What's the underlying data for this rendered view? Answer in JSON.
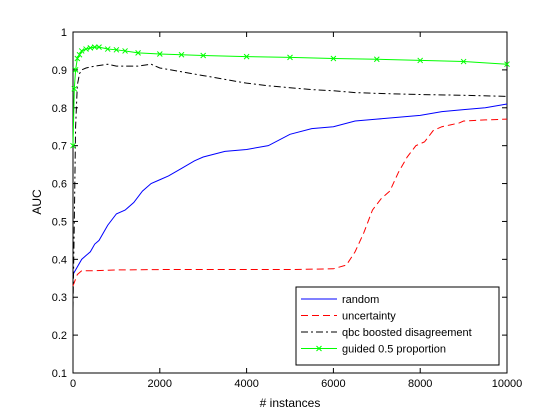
{
  "chart_data": {
    "type": "line",
    "title": "",
    "xlabel": "# instances",
    "ylabel": "AUC",
    "xlim": [
      0,
      10000
    ],
    "ylim": [
      0.1,
      1
    ],
    "xticks": [
      "0",
      "2000",
      "4000",
      "6000",
      "8000",
      "10000"
    ],
    "yticks": [
      "0.1",
      "0.2",
      "0.3",
      "0.4",
      "0.5",
      "0.6",
      "0.7",
      "0.8",
      "0.9",
      "1"
    ],
    "grid": false,
    "legend_position": "bottom-right",
    "series": [
      {
        "name": "random",
        "color": "#0000ff",
        "dash": "solid",
        "x": [
          0,
          100,
          200,
          300,
          400,
          500,
          600,
          800,
          1000,
          1200,
          1400,
          1600,
          1800,
          2000,
          2200,
          2500,
          2800,
          3000,
          3500,
          4000,
          4500,
          5000,
          5500,
          6000,
          6500,
          7000,
          7500,
          8000,
          8500,
          9000,
          9500,
          10000
        ],
        "y": [
          0.36,
          0.38,
          0.4,
          0.41,
          0.42,
          0.44,
          0.45,
          0.49,
          0.52,
          0.53,
          0.55,
          0.58,
          0.6,
          0.61,
          0.62,
          0.64,
          0.66,
          0.67,
          0.685,
          0.69,
          0.7,
          0.73,
          0.745,
          0.75,
          0.765,
          0.77,
          0.775,
          0.78,
          0.79,
          0.795,
          0.8,
          0.81
        ]
      },
      {
        "name": "uncertainty",
        "color": "#ff0000",
        "dash": "dashed",
        "x": [
          0,
          50,
          100,
          200,
          300,
          500,
          1000,
          2000,
          3000,
          4000,
          5000,
          6000,
          6300,
          6500,
          6700,
          6900,
          7100,
          7300,
          7500,
          7700,
          7900,
          8100,
          8300,
          8500,
          8700,
          8900,
          9000,
          9500,
          10000
        ],
        "y": [
          0.33,
          0.345,
          0.36,
          0.37,
          0.37,
          0.37,
          0.372,
          0.373,
          0.373,
          0.373,
          0.373,
          0.375,
          0.385,
          0.42,
          0.47,
          0.53,
          0.56,
          0.58,
          0.63,
          0.67,
          0.7,
          0.71,
          0.74,
          0.75,
          0.755,
          0.76,
          0.765,
          0.768,
          0.77
        ]
      },
      {
        "name": "qbc boosted disagreement",
        "color": "#000000",
        "dash": "dashdot",
        "x": [
          0,
          30,
          60,
          100,
          150,
          200,
          300,
          500,
          800,
          1000,
          1500,
          1800,
          2000,
          2500,
          3000,
          3500,
          4000,
          4500,
          5000,
          5500,
          6000,
          6500,
          7000,
          8000,
          9000,
          10000
        ],
        "y": [
          0.27,
          0.5,
          0.75,
          0.86,
          0.89,
          0.9,
          0.905,
          0.91,
          0.915,
          0.91,
          0.91,
          0.915,
          0.905,
          0.895,
          0.885,
          0.875,
          0.865,
          0.858,
          0.853,
          0.848,
          0.845,
          0.84,
          0.838,
          0.835,
          0.833,
          0.83
        ]
      },
      {
        "name": "guided 0.5 proportion",
        "color": "#00ff00",
        "dash": "marker-x",
        "x": [
          0,
          30,
          60,
          100,
          150,
          200,
          300,
          400,
          500,
          600,
          800,
          1000,
          1200,
          1500,
          2000,
          2500,
          3000,
          4000,
          5000,
          6000,
          7000,
          8000,
          9000,
          10000
        ],
        "y": [
          0.7,
          0.85,
          0.9,
          0.93,
          0.94,
          0.95,
          0.955,
          0.958,
          0.96,
          0.96,
          0.955,
          0.953,
          0.95,
          0.945,
          0.942,
          0.94,
          0.938,
          0.935,
          0.933,
          0.93,
          0.928,
          0.925,
          0.922,
          0.915
        ]
      }
    ]
  }
}
